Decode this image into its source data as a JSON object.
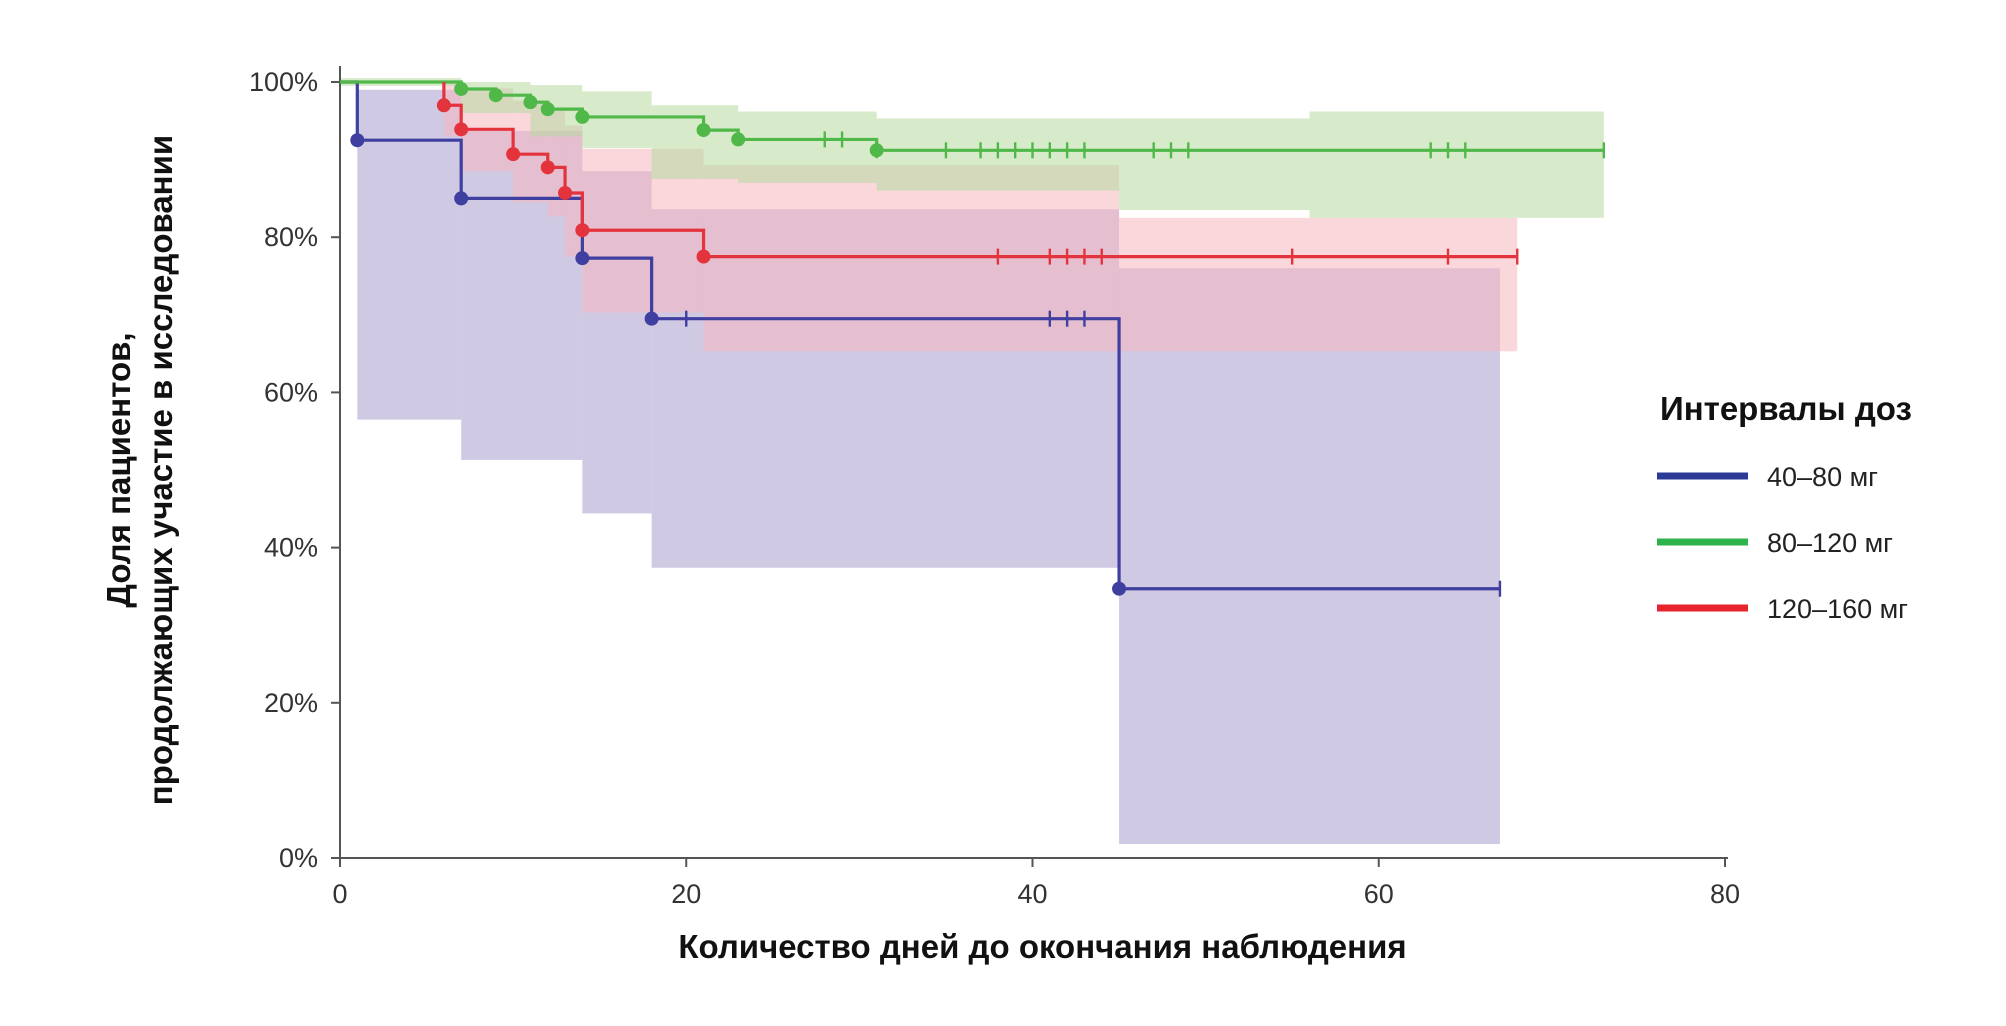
{
  "chart_data": {
    "type": "line",
    "subtype": "kaplan-meier",
    "title": "",
    "xlabel": "Количество дней до окончания наблюдения",
    "ylabel": [
      "Доля пациентов,",
      "продолжающих участие в исследовании"
    ],
    "xlim": [
      0,
      80
    ],
    "ylim": [
      0,
      100
    ],
    "x_ticks": [
      0,
      20,
      40,
      60,
      80
    ],
    "y_ticks": [
      0,
      20,
      40,
      60,
      80,
      100
    ],
    "y_tick_labels": [
      "0%",
      "20%",
      "40%",
      "60%",
      "80%",
      "100%"
    ],
    "grid": false,
    "legend": {
      "title": "Интервалы доз",
      "position": "right",
      "items": [
        {
          "label": "40–80 мг",
          "color": "#2b3a97"
        },
        {
          "label": "80–120 мг",
          "color": "#2eb24a"
        },
        {
          "label": "120–160 мг",
          "color": "#e5242c"
        }
      ]
    },
    "series": [
      {
        "name": "40–80 мг",
        "color": "#3f3fa0",
        "ci_color": "#a99ccd",
        "steps": [
          [
            0,
            100
          ],
          [
            1,
            92.5
          ],
          [
            7,
            85
          ],
          [
            14,
            77.3
          ],
          [
            18,
            69.5
          ],
          [
            45,
            34.7
          ],
          [
            67,
            34.7
          ]
        ],
        "events": [
          [
            1,
            92.5
          ],
          [
            7,
            85
          ],
          [
            14,
            77.3
          ],
          [
            18,
            69.5
          ],
          [
            45,
            34.7
          ]
        ],
        "censored": [
          [
            20,
            69.5
          ],
          [
            41,
            69.5
          ],
          [
            42,
            69.5
          ],
          [
            43,
            69.5
          ],
          [
            67,
            34.7
          ]
        ],
        "ci": [
          {
            "x0": 1,
            "x1": 7,
            "lo": 56.5,
            "hi": 99
          },
          {
            "x0": 7,
            "x1": 14,
            "lo": 51.3,
            "hi": 93.7
          },
          {
            "x0": 14,
            "x1": 18,
            "lo": 44.4,
            "hi": 88.5
          },
          {
            "x0": 18,
            "x1": 45,
            "lo": 37.4,
            "hi": 83.6
          },
          {
            "x0": 45,
            "x1": 67,
            "lo": 1.8,
            "hi": 76
          }
        ]
      },
      {
        "name": "80–120 мг",
        "color": "#4fb848",
        "ci_color": "#b7dba0",
        "steps": [
          [
            0,
            100
          ],
          [
            7,
            99.1
          ],
          [
            9,
            98.3
          ],
          [
            11,
            97.4
          ],
          [
            12,
            96.5
          ],
          [
            14,
            95.5
          ],
          [
            21,
            93.8
          ],
          [
            23,
            92.6
          ],
          [
            31,
            91.2
          ],
          [
            73,
            91.2
          ]
        ],
        "events": [
          [
            7,
            99.1
          ],
          [
            9,
            98.3
          ],
          [
            11,
            97.4
          ],
          [
            12,
            96.5
          ],
          [
            14,
            95.5
          ],
          [
            21,
            93.8
          ],
          [
            23,
            92.6
          ],
          [
            31,
            91.2
          ]
        ],
        "censored": [
          [
            28,
            92.6
          ],
          [
            29,
            92.6
          ],
          [
            31,
            91.2
          ],
          [
            35,
            91.2
          ],
          [
            37,
            91.2
          ],
          [
            38,
            91.2
          ],
          [
            39,
            91.2
          ],
          [
            40,
            91.2
          ],
          [
            41,
            91.2
          ],
          [
            42,
            91.2
          ],
          [
            43,
            91.2
          ],
          [
            47,
            91.2
          ],
          [
            48,
            91.2
          ],
          [
            49,
            91.2
          ],
          [
            63,
            91.2
          ],
          [
            64,
            91.2
          ],
          [
            65,
            91.2
          ],
          [
            73,
            91.2
          ]
        ],
        "ci": [
          {
            "x0": 0,
            "x1": 7,
            "lo": 99.5,
            "hi": 100.5
          },
          {
            "x0": 7,
            "x1": 11,
            "lo": 96,
            "hi": 100
          },
          {
            "x0": 11,
            "x1": 14,
            "lo": 93,
            "hi": 99.6
          },
          {
            "x0": 14,
            "x1": 18,
            "lo": 91.5,
            "hi": 98.8
          },
          {
            "x0": 18,
            "x1": 23,
            "lo": 87.5,
            "hi": 97
          },
          {
            "x0": 23,
            "x1": 31,
            "lo": 87,
            "hi": 96.2
          },
          {
            "x0": 31,
            "x1": 45,
            "lo": 86,
            "hi": 95.3
          },
          {
            "x0": 45,
            "x1": 56,
            "lo": 83.5,
            "hi": 95.3
          },
          {
            "x0": 56,
            "x1": 73,
            "lo": 82.5,
            "hi": 96.2
          }
        ]
      },
      {
        "name": "120–160 мг",
        "color": "#e3343e",
        "ci_color": "#f6b6bd",
        "steps": [
          [
            6,
            100
          ],
          [
            6,
            97
          ],
          [
            7,
            93.9
          ],
          [
            10,
            90.7
          ],
          [
            12,
            89
          ],
          [
            13,
            85.7
          ],
          [
            14,
            80.9
          ],
          [
            21,
            77.5
          ],
          [
            68,
            77.5
          ]
        ],
        "events": [
          [
            6,
            97
          ],
          [
            7,
            93.9
          ],
          [
            10,
            90.7
          ],
          [
            12,
            89
          ],
          [
            13,
            85.7
          ],
          [
            14,
            80.9
          ],
          [
            21,
            77.5
          ]
        ],
        "censored": [
          [
            38,
            77.5
          ],
          [
            41,
            77.5
          ],
          [
            42,
            77.5
          ],
          [
            43,
            77.5
          ],
          [
            44,
            77.5
          ],
          [
            55,
            77.5
          ],
          [
            64,
            77.5
          ],
          [
            68,
            77.5
          ]
        ],
        "ci": [
          {
            "x0": 6,
            "x1": 7,
            "lo": 93,
            "hi": 100
          },
          {
            "x0": 7,
            "x1": 10,
            "lo": 88.5,
            "hi": 99.2
          },
          {
            "x0": 10,
            "x1": 12,
            "lo": 84.5,
            "hi": 97.6
          },
          {
            "x0": 12,
            "x1": 13,
            "lo": 82.7,
            "hi": 96.6
          },
          {
            "x0": 13,
            "x1": 14,
            "lo": 77.5,
            "hi": 94.4
          },
          {
            "x0": 14,
            "x1": 21,
            "lo": 70.3,
            "hi": 91.4
          },
          {
            "x0": 21,
            "x1": 45,
            "lo": 65.3,
            "hi": 89.3
          },
          {
            "x0": 45,
            "x1": 68,
            "lo": 65.3,
            "hi": 82.5
          }
        ]
      }
    ]
  }
}
